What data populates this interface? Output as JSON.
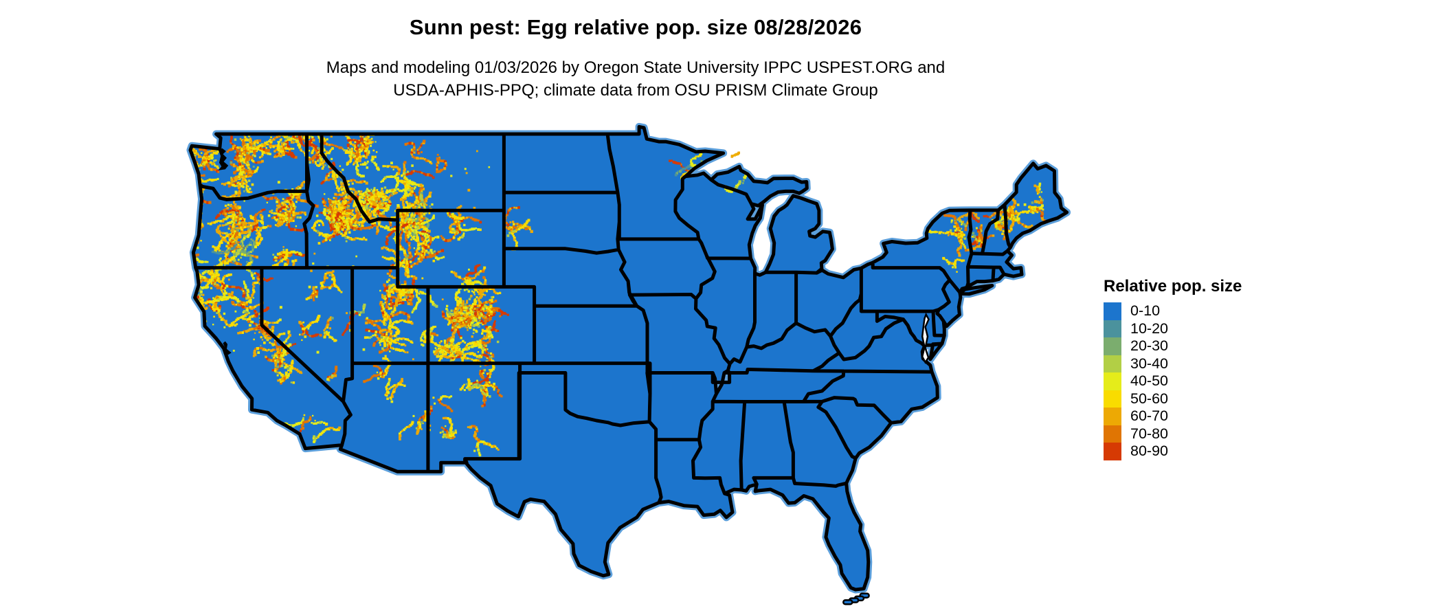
{
  "header": {
    "title": "Sunn pest: Egg relative pop. size 08/28/2026",
    "subtitle_line1": "Maps and modeling 01/03/2026 by Oregon State University IPPC USPEST.ORG and",
    "subtitle_line2": "USDA-APHIS-PPQ; climate data from OSU PRISM Climate Group"
  },
  "legend": {
    "title": "Relative pop. size",
    "items": [
      {
        "label": "0-10",
        "color": "#1C75CD"
      },
      {
        "label": "10-20",
        "color": "#4B929D"
      },
      {
        "label": "20-30",
        "color": "#7BAD6E"
      },
      {
        "label": "30-40",
        "color": "#B2CF45"
      },
      {
        "label": "40-50",
        "color": "#E5EC1A"
      },
      {
        "label": "50-60",
        "color": "#F9DC00"
      },
      {
        "label": "60-70",
        "color": "#EDA904"
      },
      {
        "label": "70-80",
        "color": "#E07503"
      },
      {
        "label": "80-90",
        "color": "#D63A03"
      }
    ]
  },
  "map": {
    "region": "Contiguous United States",
    "land_fill": "#1C75CD",
    "border_color": "#000000",
    "coast_fringe": "#5C9FDB",
    "background": "#FFFFFF"
  }
}
